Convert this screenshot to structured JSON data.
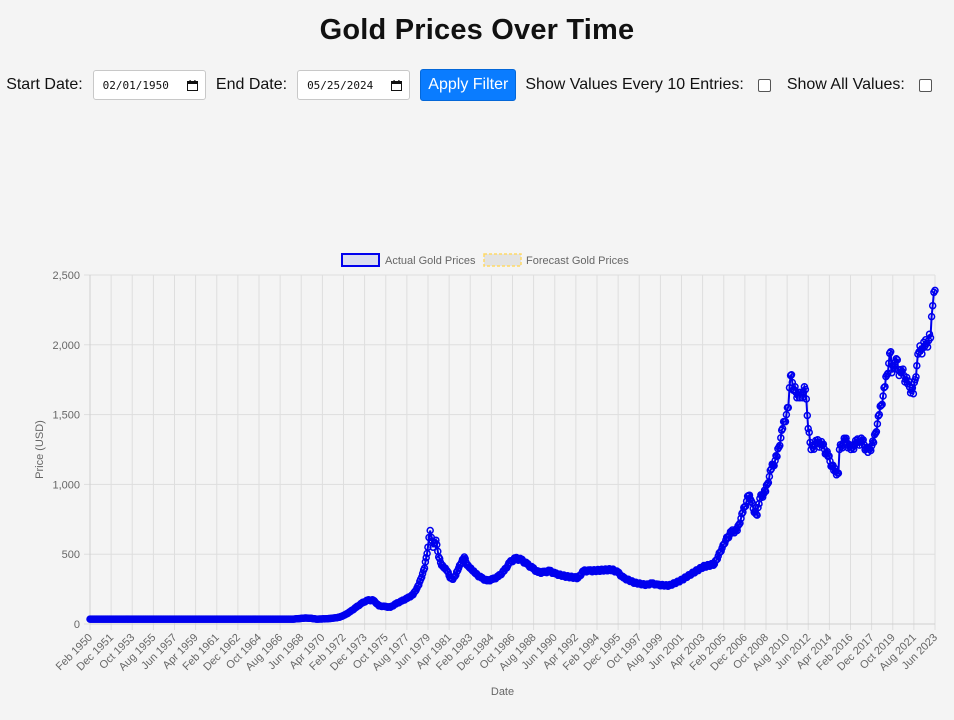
{
  "page": {
    "title": "Gold Prices Over Time"
  },
  "filters": {
    "start_label": "Start Date:",
    "start_value": "02/01/1950",
    "end_label": "End Date:",
    "end_value": "05/25/2024",
    "apply_label": "Apply Filter",
    "every10_label": "Show Values Every 10 Entries:",
    "every10_checked": false,
    "all_label": "Show All Values:",
    "all_checked": false
  },
  "chart_data": {
    "type": "line",
    "xlabel": "Date",
    "ylabel": "Price (USD)",
    "ylim": [
      0,
      2500
    ],
    "yticks": [
      0,
      500,
      1000,
      1500,
      2000,
      2500
    ],
    "ytick_labels": [
      "0",
      "500",
      "1,000",
      "1,500",
      "2,000",
      "2,500"
    ],
    "xticks": [
      "Feb 1950",
      "Dec 1951",
      "Oct 1953",
      "Aug 1955",
      "Jun 1957",
      "Apr 1959",
      "Feb 1961",
      "Dec 1962",
      "Oct 1964",
      "Aug 1966",
      "Jun 1968",
      "Apr 1970",
      "Feb 1972",
      "Dec 1973",
      "Oct 1975",
      "Aug 1977",
      "Jun 1979",
      "Apr 1981",
      "Feb 1983",
      "Dec 1984",
      "Oct 1986",
      "Aug 1988",
      "Jun 1990",
      "Apr 1992",
      "Feb 1994",
      "Dec 1995",
      "Oct 1997",
      "Aug 1999",
      "Jun 2001",
      "Apr 2003",
      "Feb 2005",
      "Dec 2006",
      "Oct 2008",
      "Aug 2010",
      "Jun 2012",
      "Apr 2014",
      "Feb 2016",
      "Dec 2017",
      "Oct 2019",
      "Aug 2021",
      "Jun 2023"
    ],
    "legend": [
      {
        "name": "Actual Gold Prices",
        "color": "#0000ee",
        "fill": "#dadcf0"
      },
      {
        "name": "Forecast Gold Prices",
        "color": "#ffd966",
        "fill": "#e3e3e3"
      }
    ],
    "legend_position": "top",
    "grid": true,
    "point_style": "hollow-circle",
    "series": [
      {
        "name": "Actual Gold Prices",
        "color": "#0000ee",
        "x": [
          1950.08,
          1955,
          1960,
          1965,
          1968,
          1968.5,
          1969,
          1969.5,
          1970,
          1970.5,
          1971,
          1971.5,
          1972,
          1972.5,
          1973,
          1973.5,
          1974,
          1974.5,
          1975,
          1975.5,
          1976,
          1976.5,
          1977,
          1977.5,
          1978,
          1978.5,
          1979,
          1979.5,
          1979.8,
          1980,
          1980.1,
          1980.25,
          1980.5,
          1980.75,
          1981,
          1981.25,
          1981.5,
          1981.75,
          1982,
          1982.25,
          1982.5,
          1982.75,
          1983,
          1983.25,
          1983.5,
          1983.75,
          1984,
          1984.5,
          1985,
          1985.5,
          1986,
          1986.5,
          1987,
          1987.5,
          1988,
          1988.5,
          1989,
          1989.5,
          1990,
          1990.5,
          1991,
          1992,
          1993,
          1993.5,
          1994,
          1995,
          1996,
          1996.5,
          1997,
          1998,
          1999,
          1999.5,
          2000,
          2001,
          2002,
          2003,
          2004,
          2005,
          2006,
          2006.5,
          2007,
          2007.5,
          2008,
          2008.25,
          2008.5,
          2008.75,
          2009,
          2009.5,
          2010,
          2010.5,
          2011,
          2011.5,
          2011.7,
          2012,
          2012.5,
          2013,
          2013.25,
          2013.5,
          2014,
          2014.5,
          2015,
          2015.5,
          2015.9,
          2016,
          2016.5,
          2017,
          2017.5,
          2018,
          2018.5,
          2019,
          2019.5,
          2020,
          2020.5,
          2020.6,
          2021,
          2021.25,
          2021.5,
          2022,
          2022.5,
          2022.8,
          2023,
          2023.5,
          2024,
          2024.2,
          2024.4
        ],
        "y": [
          35,
          35,
          35,
          35,
          35,
          39,
          43,
          41,
          35,
          36,
          38,
          42,
          48,
          65,
          90,
          120,
          150,
          170,
          170,
          130,
          125,
          120,
          145,
          165,
          185,
          210,
          280,
          400,
          550,
          670,
          620,
          550,
          600,
          480,
          420,
          400,
          380,
          330,
          320,
          350,
          400,
          440,
          480,
          420,
          400,
          380,
          360,
          330,
          310,
          320,
          340,
          380,
          440,
          470,
          460,
          430,
          400,
          370,
          370,
          380,
          360,
          340,
          330,
          380,
          380,
          385,
          390,
          370,
          330,
          295,
          280,
          290,
          280,
          275,
          310,
          360,
          410,
          430,
          600,
          660,
          670,
          800,
          920,
          880,
          800,
          780,
          900,
          950,
          1110,
          1200,
          1400,
          1550,
          1780,
          1680,
          1620,
          1680,
          1400,
          1250,
          1300,
          1280,
          1200,
          1100,
          1080,
          1250,
          1320,
          1250,
          1300,
          1310,
          1230,
          1300,
          1500,
          1700,
          1950,
          1800,
          1900,
          1780,
          1810,
          1720,
          1650,
          1850,
          1950,
          1990,
          2050,
          2280,
          2390
        ]
      },
      {
        "name": "Forecast Gold Prices",
        "color": "#ffd966",
        "x": [],
        "y": []
      }
    ]
  }
}
